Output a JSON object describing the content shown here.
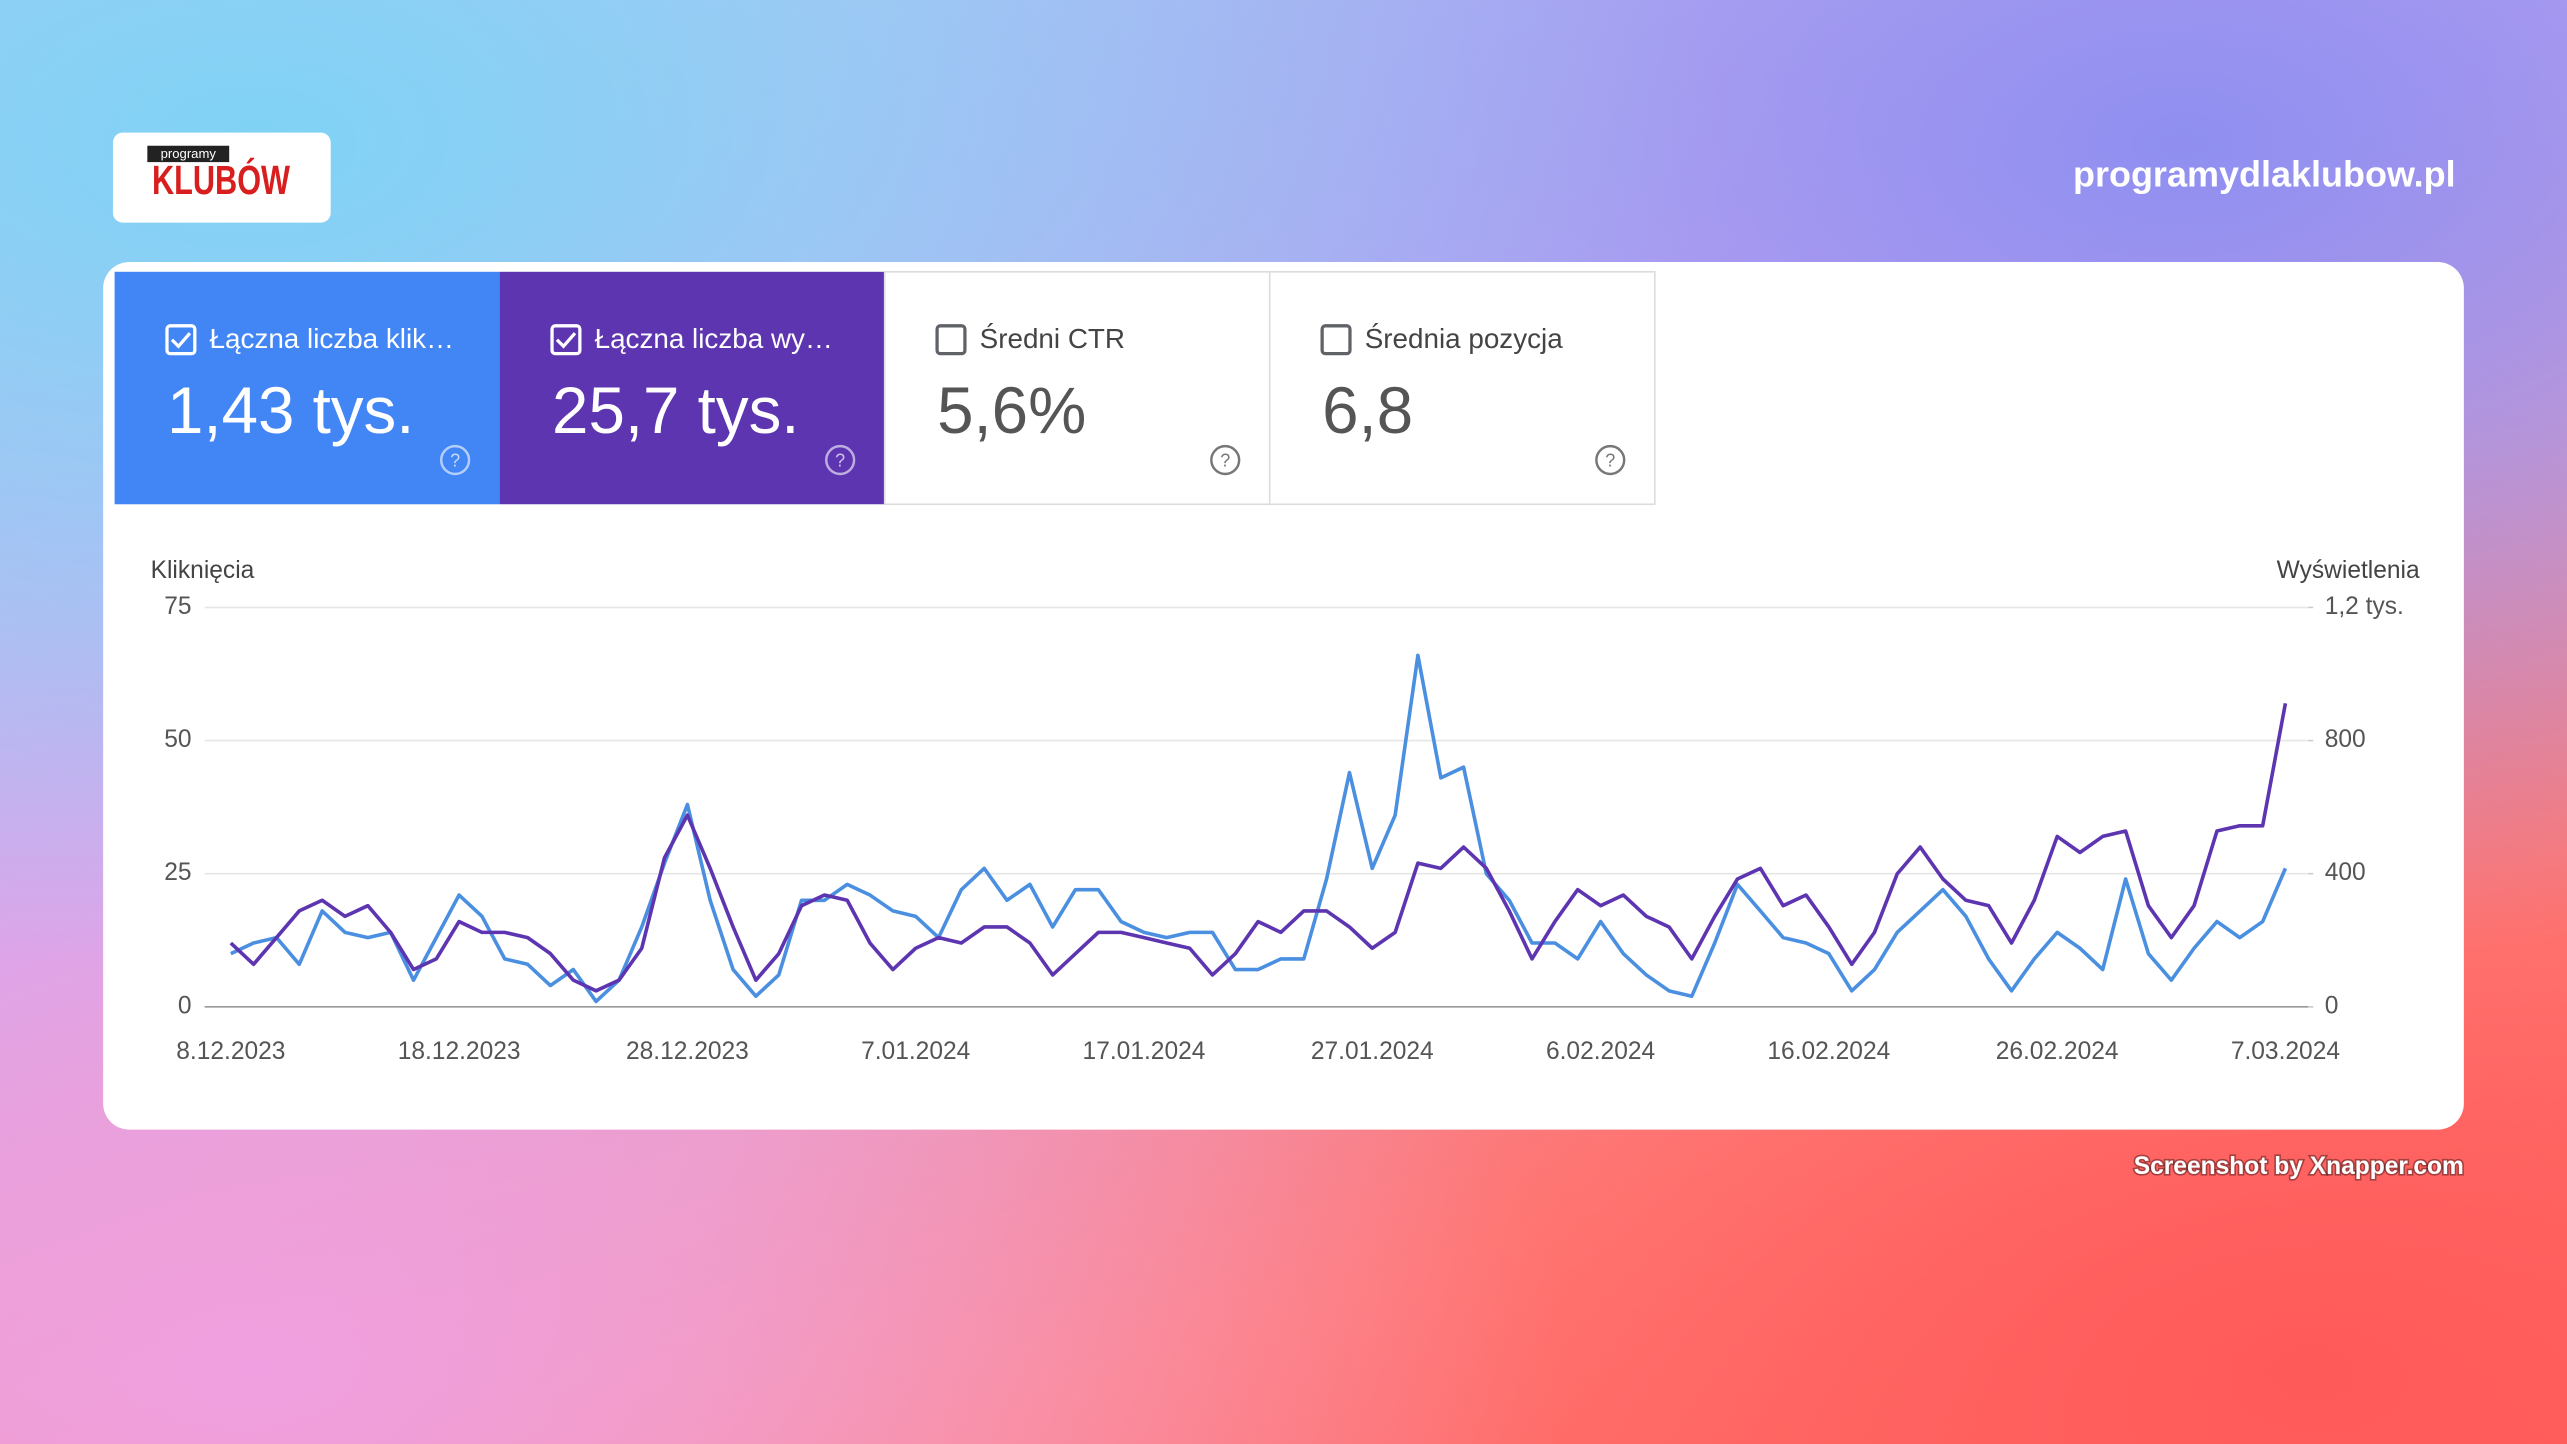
{
  "header": {
    "logo_small": "programy",
    "logo": "KLUBÓW",
    "site": "programydlaklubow.pl"
  },
  "cards": [
    {
      "label": "Łączna liczba klik…",
      "value": "1,43 tys.",
      "checked": true,
      "color": "#4285f4"
    },
    {
      "label": "Łączna liczba wy…",
      "value": "25,7 tys.",
      "checked": true,
      "color": "#5e35b1"
    },
    {
      "label": "Średni CTR",
      "value": "5,6%",
      "checked": false
    },
    {
      "label": "Średnia pozycja",
      "value": "6,8",
      "checked": false
    }
  ],
  "chart_data": {
    "type": "line",
    "ylabel": "Kliknięcia",
    "y2label": "Wyświetlenia",
    "categories": [
      "8.12.2023",
      null,
      null,
      null,
      null,
      null,
      null,
      null,
      null,
      null,
      "18.12.2023",
      null,
      null,
      null,
      null,
      null,
      null,
      null,
      null,
      null,
      "28.12.2023",
      null,
      null,
      null,
      null,
      null,
      null,
      null,
      null,
      null,
      "7.01.2024",
      null,
      null,
      null,
      null,
      null,
      null,
      null,
      null,
      null,
      "17.01.2024",
      null,
      null,
      null,
      null,
      null,
      null,
      null,
      null,
      null,
      "27.01.2024",
      null,
      null,
      null,
      null,
      null,
      null,
      null,
      null,
      null,
      "6.02.2024",
      null,
      null,
      null,
      null,
      null,
      null,
      null,
      null,
      null,
      "16.02.2024",
      null,
      null,
      null,
      null,
      null,
      null,
      null,
      null,
      null,
      "26.02.2024",
      null,
      null,
      null,
      null,
      null,
      null,
      null,
      null,
      null,
      "7.03.2024"
    ],
    "series": [
      {
        "color": "#4a8fe0",
        "axis": "y",
        "values": [
          10,
          12,
          13,
          8,
          18,
          14,
          13,
          14,
          5,
          13,
          21,
          17,
          9,
          8,
          4,
          7,
          1,
          5,
          15,
          27,
          38,
          20,
          7,
          2,
          6,
          20,
          20,
          23,
          21,
          18,
          17,
          13,
          22,
          26,
          20,
          23,
          15,
          22,
          22,
          16,
          14,
          13,
          14,
          14,
          7,
          7,
          9,
          9,
          24,
          44,
          26,
          36,
          66,
          43,
          45,
          25,
          20,
          12,
          12,
          9,
          16,
          10,
          6,
          3,
          2,
          12,
          23,
          18,
          13,
          12,
          10,
          3,
          7,
          14,
          18,
          22,
          17,
          9,
          3,
          9,
          14,
          11,
          7,
          24,
          10,
          5,
          11,
          16,
          13,
          16,
          26
        ]
      },
      {
        "color": "#5e35b1",
        "axis": "y2",
        "values": [
          192,
          128,
          208,
          288,
          320,
          272,
          304,
          224,
          112,
          144,
          256,
          224,
          224,
          208,
          160,
          80,
          48,
          80,
          176,
          448,
          576,
          416,
          240,
          80,
          160,
          304,
          336,
          320,
          192,
          112,
          176,
          208,
          192,
          240,
          240,
          192,
          96,
          160,
          224,
          224,
          208,
          192,
          176,
          96,
          160,
          256,
          224,
          288,
          288,
          240,
          176,
          224,
          432,
          416,
          480,
          416,
          288,
          144,
          256,
          352,
          304,
          336,
          272,
          240,
          144,
          272,
          384,
          416,
          304,
          336,
          240,
          128,
          224,
          400,
          480,
          384,
          320,
          304,
          192,
          320,
          512,
          464,
          512,
          528,
          304,
          208,
          304,
          528,
          544,
          544,
          912
        ]
      }
    ],
    "ylim": [
      0,
      75
    ],
    "yticks": [
      0,
      25,
      50,
      75
    ],
    "y2lim": [
      0,
      1200
    ],
    "y2ticks": [
      0,
      400,
      800,
      {
        "value": 1200,
        "label": "1,2 tys."
      }
    ],
    "grid": true
  },
  "footer": "Screenshot by Xnapper.com"
}
